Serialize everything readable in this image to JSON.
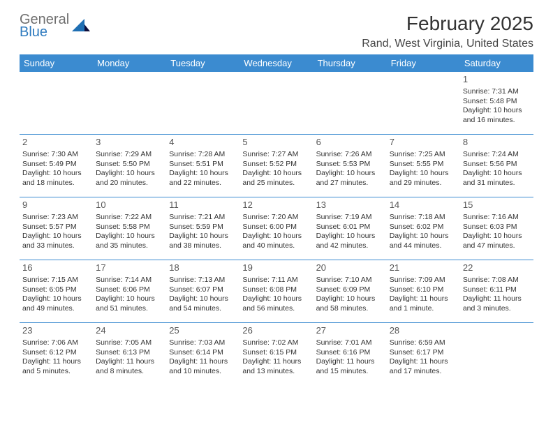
{
  "logo": {
    "line1": "General",
    "line2": "Blue"
  },
  "title": "February 2025",
  "location": "Rand, West Virginia, United States",
  "colors": {
    "header_bg": "#3b8bd0",
    "header_text": "#ffffff",
    "row_border": "#3b8bd0",
    "logo_gray": "#6e6e6e",
    "logo_blue": "#2f7bbf"
  },
  "weekdays": [
    "Sunday",
    "Monday",
    "Tuesday",
    "Wednesday",
    "Thursday",
    "Friday",
    "Saturday"
  ],
  "weeks": [
    [
      null,
      null,
      null,
      null,
      null,
      null,
      {
        "d": "1",
        "sr": "Sunrise: 7:31 AM",
        "ss": "Sunset: 5:48 PM",
        "dl": "Daylight: 10 hours and 16 minutes."
      }
    ],
    [
      {
        "d": "2",
        "sr": "Sunrise: 7:30 AM",
        "ss": "Sunset: 5:49 PM",
        "dl": "Daylight: 10 hours and 18 minutes."
      },
      {
        "d": "3",
        "sr": "Sunrise: 7:29 AM",
        "ss": "Sunset: 5:50 PM",
        "dl": "Daylight: 10 hours and 20 minutes."
      },
      {
        "d": "4",
        "sr": "Sunrise: 7:28 AM",
        "ss": "Sunset: 5:51 PM",
        "dl": "Daylight: 10 hours and 22 minutes."
      },
      {
        "d": "5",
        "sr": "Sunrise: 7:27 AM",
        "ss": "Sunset: 5:52 PM",
        "dl": "Daylight: 10 hours and 25 minutes."
      },
      {
        "d": "6",
        "sr": "Sunrise: 7:26 AM",
        "ss": "Sunset: 5:53 PM",
        "dl": "Daylight: 10 hours and 27 minutes."
      },
      {
        "d": "7",
        "sr": "Sunrise: 7:25 AM",
        "ss": "Sunset: 5:55 PM",
        "dl": "Daylight: 10 hours and 29 minutes."
      },
      {
        "d": "8",
        "sr": "Sunrise: 7:24 AM",
        "ss": "Sunset: 5:56 PM",
        "dl": "Daylight: 10 hours and 31 minutes."
      }
    ],
    [
      {
        "d": "9",
        "sr": "Sunrise: 7:23 AM",
        "ss": "Sunset: 5:57 PM",
        "dl": "Daylight: 10 hours and 33 minutes."
      },
      {
        "d": "10",
        "sr": "Sunrise: 7:22 AM",
        "ss": "Sunset: 5:58 PM",
        "dl": "Daylight: 10 hours and 35 minutes."
      },
      {
        "d": "11",
        "sr": "Sunrise: 7:21 AM",
        "ss": "Sunset: 5:59 PM",
        "dl": "Daylight: 10 hours and 38 minutes."
      },
      {
        "d": "12",
        "sr": "Sunrise: 7:20 AM",
        "ss": "Sunset: 6:00 PM",
        "dl": "Daylight: 10 hours and 40 minutes."
      },
      {
        "d": "13",
        "sr": "Sunrise: 7:19 AM",
        "ss": "Sunset: 6:01 PM",
        "dl": "Daylight: 10 hours and 42 minutes."
      },
      {
        "d": "14",
        "sr": "Sunrise: 7:18 AM",
        "ss": "Sunset: 6:02 PM",
        "dl": "Daylight: 10 hours and 44 minutes."
      },
      {
        "d": "15",
        "sr": "Sunrise: 7:16 AM",
        "ss": "Sunset: 6:03 PM",
        "dl": "Daylight: 10 hours and 47 minutes."
      }
    ],
    [
      {
        "d": "16",
        "sr": "Sunrise: 7:15 AM",
        "ss": "Sunset: 6:05 PM",
        "dl": "Daylight: 10 hours and 49 minutes."
      },
      {
        "d": "17",
        "sr": "Sunrise: 7:14 AM",
        "ss": "Sunset: 6:06 PM",
        "dl": "Daylight: 10 hours and 51 minutes."
      },
      {
        "d": "18",
        "sr": "Sunrise: 7:13 AM",
        "ss": "Sunset: 6:07 PM",
        "dl": "Daylight: 10 hours and 54 minutes."
      },
      {
        "d": "19",
        "sr": "Sunrise: 7:11 AM",
        "ss": "Sunset: 6:08 PM",
        "dl": "Daylight: 10 hours and 56 minutes."
      },
      {
        "d": "20",
        "sr": "Sunrise: 7:10 AM",
        "ss": "Sunset: 6:09 PM",
        "dl": "Daylight: 10 hours and 58 minutes."
      },
      {
        "d": "21",
        "sr": "Sunrise: 7:09 AM",
        "ss": "Sunset: 6:10 PM",
        "dl": "Daylight: 11 hours and 1 minute."
      },
      {
        "d": "22",
        "sr": "Sunrise: 7:08 AM",
        "ss": "Sunset: 6:11 PM",
        "dl": "Daylight: 11 hours and 3 minutes."
      }
    ],
    [
      {
        "d": "23",
        "sr": "Sunrise: 7:06 AM",
        "ss": "Sunset: 6:12 PM",
        "dl": "Daylight: 11 hours and 5 minutes."
      },
      {
        "d": "24",
        "sr": "Sunrise: 7:05 AM",
        "ss": "Sunset: 6:13 PM",
        "dl": "Daylight: 11 hours and 8 minutes."
      },
      {
        "d": "25",
        "sr": "Sunrise: 7:03 AM",
        "ss": "Sunset: 6:14 PM",
        "dl": "Daylight: 11 hours and 10 minutes."
      },
      {
        "d": "26",
        "sr": "Sunrise: 7:02 AM",
        "ss": "Sunset: 6:15 PM",
        "dl": "Daylight: 11 hours and 13 minutes."
      },
      {
        "d": "27",
        "sr": "Sunrise: 7:01 AM",
        "ss": "Sunset: 6:16 PM",
        "dl": "Daylight: 11 hours and 15 minutes."
      },
      {
        "d": "28",
        "sr": "Sunrise: 6:59 AM",
        "ss": "Sunset: 6:17 PM",
        "dl": "Daylight: 11 hours and 17 minutes."
      },
      null
    ]
  ]
}
